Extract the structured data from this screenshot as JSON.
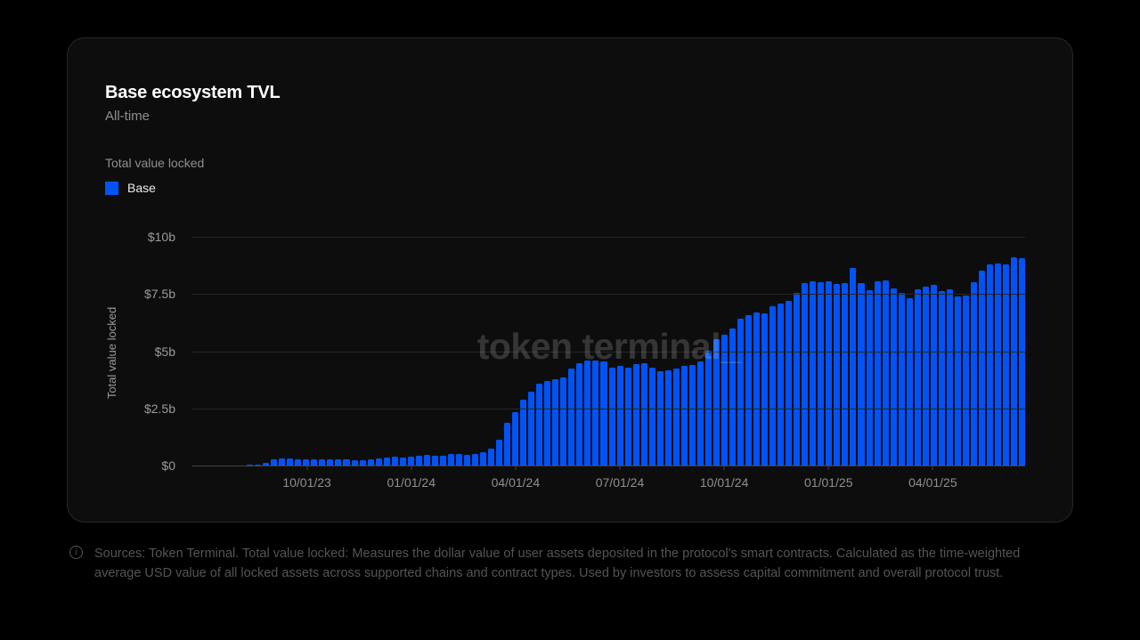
{
  "card": {
    "title": "Base ecosystem TVL",
    "subtitle": "All-time",
    "metric_label": "Total value locked",
    "legend": [
      {
        "label": "Base",
        "color": "#0253f5"
      }
    ]
  },
  "watermark": "token terminal_",
  "footer": {
    "icon": "info-icon",
    "text": "Sources: Token Terminal. Total value locked: Measures the dollar value of user assets deposited in the protocol's smart contracts. Calculated as the time-weighted average USD value of all locked assets across supported chains and contract types. Used by investors to assess capital commitment and overall protocol trust."
  },
  "colors": {
    "page_background": "#000000",
    "card_background": "#0d0d0d",
    "card_border": "#272727",
    "bar": "#0253f5",
    "gridline": "#262626",
    "axis_text": "#8f8f8f",
    "title_text": "#ffffff"
  },
  "chart_data": {
    "type": "bar",
    "title": "Base ecosystem TVL",
    "subtitle": "All-time",
    "ylabel": "Total value locked",
    "ylim": [
      0,
      10
    ],
    "grid": true,
    "legend_position": "top-left",
    "x_start_date": "07/23/23",
    "x_interval": "weekly",
    "series": [
      {
        "name": "Base",
        "color": "#0253f5",
        "unit": "USD billions",
        "values": [
          0.01,
          0.01,
          0.02,
          0.03,
          0.05,
          0.12,
          0.27,
          0.33,
          0.31,
          0.28,
          0.26,
          0.26,
          0.26,
          0.26,
          0.26,
          0.26,
          0.25,
          0.23,
          0.27,
          0.31,
          0.35,
          0.39,
          0.35,
          0.39,
          0.43,
          0.47,
          0.43,
          0.43,
          0.49,
          0.49,
          0.45,
          0.51,
          0.58,
          0.74,
          1.13,
          1.87,
          2.33,
          2.87,
          3.22,
          3.57,
          3.69,
          3.77,
          3.84,
          4.23,
          4.46,
          4.58,
          4.58,
          4.54,
          4.27,
          4.35,
          4.27,
          4.42,
          4.46,
          4.27,
          4.12,
          4.15,
          4.23,
          4.35,
          4.38,
          4.54,
          5.01,
          5.53,
          5.72,
          5.99,
          6.42,
          6.58,
          6.69,
          6.65,
          6.97,
          7.08,
          7.2,
          7.54,
          7.97,
          8.05,
          8.0,
          8.05,
          7.95,
          7.97,
          8.63,
          7.97,
          7.66,
          8.05,
          8.09,
          7.74,
          7.54,
          7.3,
          7.7,
          7.82,
          7.9,
          7.62,
          7.7,
          7.4,
          7.44,
          8.02,
          8.52,
          8.78,
          8.83,
          8.79,
          9.1,
          9.05
        ]
      }
    ],
    "yticks": [
      {
        "label": "$10b",
        "value": 10
      },
      {
        "label": "$7.5b",
        "value": 7.5
      },
      {
        "label": "$5b",
        "value": 5
      },
      {
        "label": "$2.5b",
        "value": 2.5
      },
      {
        "label": "$0",
        "value": 0
      }
    ],
    "xticks": [
      {
        "label": "10/01/23",
        "index": 10
      },
      {
        "label": "01/01/24",
        "index": 23
      },
      {
        "label": "04/01/24",
        "index": 36
      },
      {
        "label": "07/01/24",
        "index": 49
      },
      {
        "label": "10/01/24",
        "index": 62
      },
      {
        "label": "01/01/25",
        "index": 75
      },
      {
        "label": "04/01/25",
        "index": 88
      }
    ]
  }
}
